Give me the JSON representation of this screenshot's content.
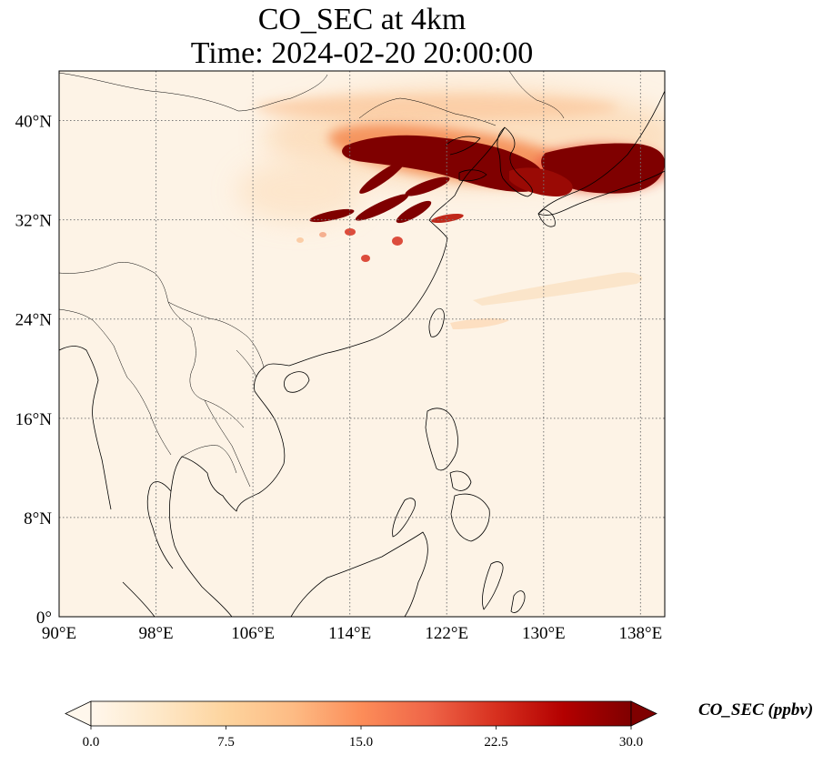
{
  "title": {
    "line1": "CO_SEC at 4km",
    "line2": "Time: 2024-02-20 20:00:00"
  },
  "map": {
    "projection": "PlateCarree",
    "lon_range": [
      90,
      140
    ],
    "lat_range": [
      0,
      44
    ],
    "gridlines": true,
    "lon_ticks": [
      {
        "value": 90,
        "label": "90°E"
      },
      {
        "value": 98,
        "label": "98°E"
      },
      {
        "value": 106,
        "label": "106°E"
      },
      {
        "value": 114,
        "label": "114°E"
      },
      {
        "value": 122,
        "label": "122°E"
      },
      {
        "value": 130,
        "label": "130°E"
      },
      {
        "value": 138,
        "label": "138°E"
      }
    ],
    "lat_ticks": [
      {
        "value": 0,
        "label": "0°"
      },
      {
        "value": 8,
        "label": "8°N"
      },
      {
        "value": 16,
        "label": "16°N"
      },
      {
        "value": 24,
        "label": "24°N"
      },
      {
        "value": 32,
        "label": "32°N"
      },
      {
        "value": 40,
        "label": "40°N"
      }
    ],
    "plumes": [
      {
        "lon": 128,
        "lat": 37.5,
        "intensity": 1.0
      },
      {
        "lon": 137,
        "lat": 37.0,
        "intensity": 1.0
      },
      {
        "lon": 121,
        "lat": 35.5,
        "intensity": 0.9
      },
      {
        "lon": 116,
        "lat": 33.5,
        "intensity": 0.8
      },
      {
        "lon": 124,
        "lat": 41.5,
        "intensity": 0.25
      }
    ]
  },
  "colorbar": {
    "label": "CO_SEC (ppbv)",
    "min": 0.0,
    "max": 30.0,
    "extend": "both",
    "cmap": "OrRd",
    "colors": [
      "#fff7ec",
      "#fee8c8",
      "#fdd49e",
      "#fdbb84",
      "#fc8d59",
      "#ef6548",
      "#d7301f",
      "#b30000",
      "#7f0000"
    ],
    "ticks": [
      "0.0",
      "7.5",
      "15.0",
      "22.5",
      "30.0"
    ]
  }
}
